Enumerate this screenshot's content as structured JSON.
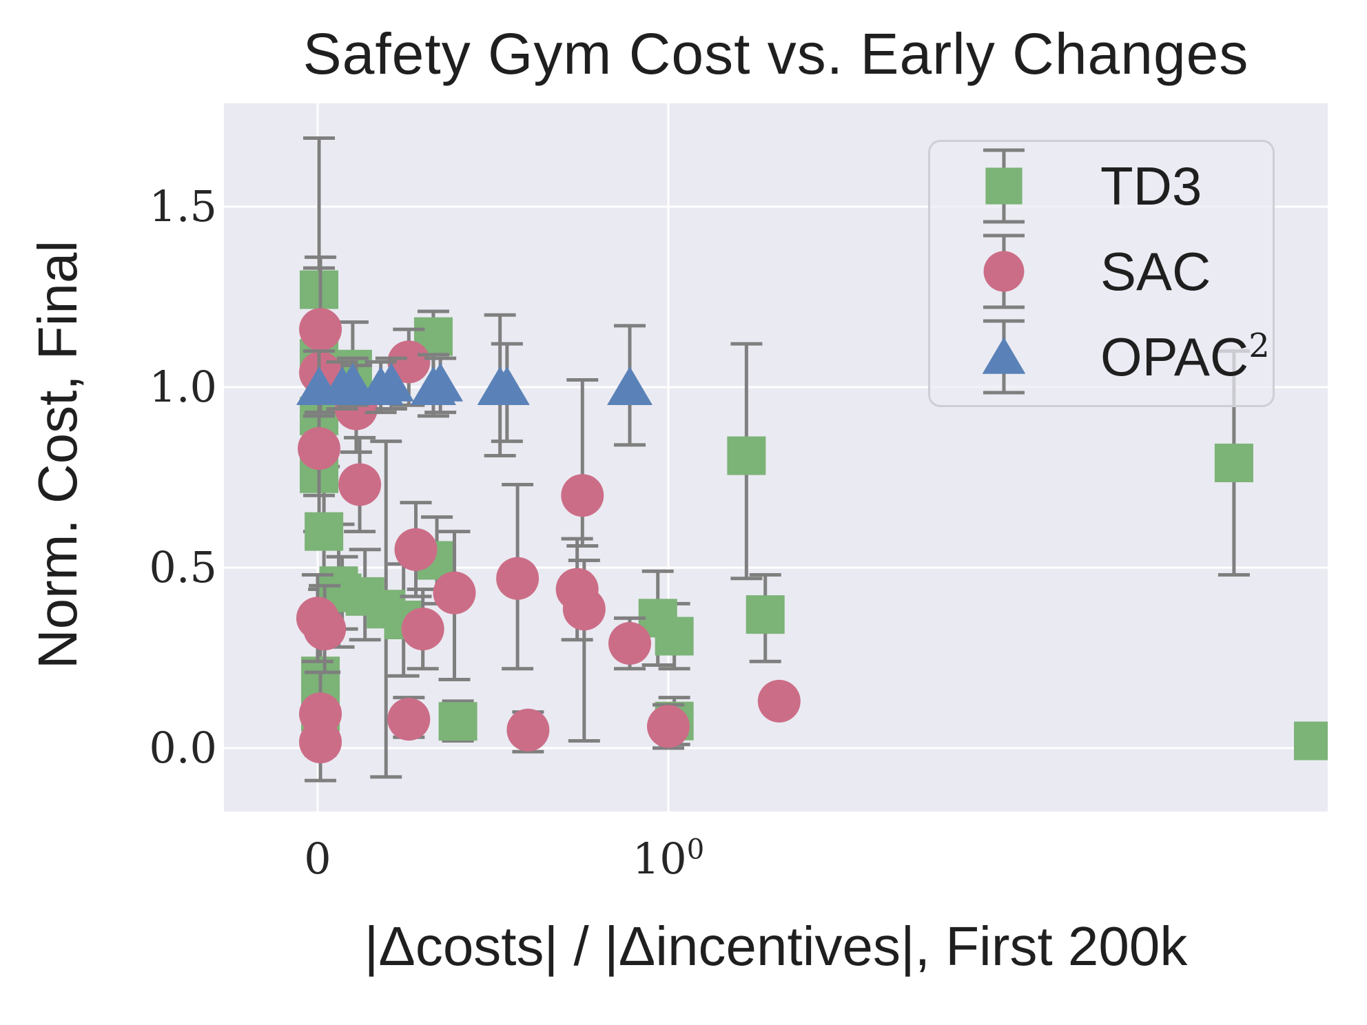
{
  "figure": {
    "title": "Safety Gym Cost vs. Early Changes",
    "xlabel": "|Δcosts| / |Δincentives|, First 200k",
    "ylabel": "Norm. Cost, Final"
  },
  "legend": {
    "items": [
      {
        "label": "TD3",
        "sup": "",
        "marker": "square",
        "color": "#7cb377"
      },
      {
        "label": "SAC",
        "sup": "",
        "marker": "circle",
        "color": "#cc6d87"
      },
      {
        "label": "OPAC",
        "sup": "2",
        "marker": "triangle",
        "color": "#5a82b8"
      }
    ]
  },
  "chart_data": {
    "type": "scatter",
    "title": "Safety Gym Cost vs. Early Changes",
    "xlabel": "|Δcosts| / |Δincentives|, First 200k",
    "ylabel": "Norm. Cost, Final",
    "x_scale": "symlog: linear from 0 to 1, log10 above 1",
    "x_ticks": [
      {
        "base": "0",
        "sup": "",
        "value": 0
      },
      {
        "base": "10",
        "sup": "0",
        "value": 1
      }
    ],
    "y_ticks": [
      {
        "label": "0.0",
        "value": 0.0
      },
      {
        "label": "0.5",
        "value": 0.5
      },
      {
        "label": "1.0",
        "value": 1.0
      },
      {
        "label": "1.5",
        "value": 1.5
      }
    ],
    "x_grid_values": [
      0,
      1
    ],
    "y_grid_values": [
      0.0,
      0.5,
      1.0,
      1.5
    ],
    "ylim": [
      -0.18,
      1.79
    ],
    "xlim": [
      -0.27,
      76
    ],
    "grid": true,
    "legend_position": "upper right",
    "errorbar_color": "#7f7f7f",
    "background_color": "#eaeaf2",
    "series": [
      {
        "name": "TD3",
        "marker": "square",
        "color": "#7cb377",
        "points_format": [
          "x",
          "y",
          "err_low",
          "err_high"
        ],
        "points": [
          [
            0.004,
            1.27,
            0.93,
            1.69
          ],
          [
            0.004,
            1.08,
            0.96,
            1.33
          ],
          [
            0.004,
            0.92,
            0.73,
            1.1
          ],
          [
            0.004,
            0.76,
            0.6,
            0.95
          ],
          [
            0.018,
            0.6,
            0.44,
            0.78
          ],
          [
            0.008,
            0.2,
            0.08,
            0.32
          ],
          [
            0.008,
            0.1,
            0.0,
            0.2
          ],
          [
            0.06,
            0.45,
            0.28,
            0.62
          ],
          [
            0.07,
            0.43,
            0.33,
            0.53
          ],
          [
            0.1,
            1.05,
            0.92,
            1.18
          ],
          [
            0.135,
            0.42,
            0.3,
            0.55
          ],
          [
            0.195,
            0.385,
            -0.08,
            0.85
          ],
          [
            0.245,
            0.355,
            0.2,
            0.51
          ],
          [
            0.33,
            1.14,
            0.97,
            1.21
          ],
          [
            0.34,
            0.52,
            0.4,
            0.64
          ],
          [
            0.4,
            0.074,
            0.02,
            0.13
          ],
          [
            0.97,
            0.36,
            0.23,
            0.49
          ],
          [
            1.04,
            0.31,
            0.22,
            0.4
          ],
          [
            1.04,
            0.075,
            0.01,
            0.14
          ],
          [
            1.67,
            0.81,
            0.47,
            1.12
          ],
          [
            1.89,
            0.37,
            0.24,
            0.48
          ],
          [
            41,
            0.79,
            0.48,
            1.1
          ],
          [
            69,
            0.02,
            -0.01,
            0.05
          ]
        ]
      },
      {
        "name": "SAC",
        "marker": "circle",
        "color": "#cc6d87",
        "points_format": [
          "x",
          "y",
          "err_low",
          "err_high"
        ],
        "points": [
          [
            0.008,
            1.16,
            1.02,
            1.36
          ],
          [
            0.008,
            1.04,
            0.93,
            1.15
          ],
          [
            0.26,
            1.07,
            0.95,
            1.16
          ],
          [
            0.004,
            0.83,
            0.7,
            0.97
          ],
          [
            0.11,
            0.94,
            0.82,
            1.06
          ],
          [
            0.12,
            0.73,
            0.6,
            0.86
          ],
          [
            0.28,
            0.55,
            0.42,
            0.68
          ],
          [
            0.39,
            0.43,
            0.19,
            0.6
          ],
          [
            0.3,
            0.33,
            0.22,
            0.44
          ],
          [
            0.0,
            0.36,
            0.24,
            0.48
          ],
          [
            0.02,
            0.33,
            0.21,
            0.45
          ],
          [
            0.57,
            0.47,
            0.22,
            0.73
          ],
          [
            0.755,
            0.7,
            0.56,
            1.02
          ],
          [
            0.74,
            0.44,
            0.3,
            0.58
          ],
          [
            0.76,
            0.385,
            0.02,
            0.52
          ],
          [
            0.89,
            0.29,
            0.22,
            0.36
          ],
          [
            1.0,
            0.06,
            0.0,
            0.12
          ],
          [
            2.07,
            0.13,
            0.1,
            0.16
          ],
          [
            0.26,
            0.08,
            0.03,
            0.14
          ],
          [
            0.008,
            0.095,
            -0.02,
            0.21
          ],
          [
            0.008,
            0.017,
            -0.09,
            0.12
          ],
          [
            0.6,
            0.05,
            -0.01,
            0.1
          ]
        ]
      },
      {
        "name": "OPAC^2",
        "marker": "triangle",
        "color": "#5a82b8",
        "points_format": [
          "x",
          "y",
          "err_low",
          "err_high"
        ],
        "points": [
          [
            0.004,
            1.0,
            0.92,
            1.1
          ],
          [
            0.07,
            1.0,
            0.94,
            1.07
          ],
          [
            0.1,
            1.01,
            0.95,
            1.08
          ],
          [
            0.18,
            1.0,
            0.93,
            1.07
          ],
          [
            0.21,
            1.01,
            0.94,
            1.08
          ],
          [
            0.33,
            1.0,
            0.92,
            1.09
          ],
          [
            0.35,
            1.01,
            0.93,
            1.08
          ],
          [
            0.52,
            1.0,
            0.81,
            1.2
          ],
          [
            0.54,
            1.0,
            0.85,
            1.12
          ],
          [
            0.89,
            1.0,
            0.84,
            1.17
          ]
        ]
      }
    ]
  }
}
